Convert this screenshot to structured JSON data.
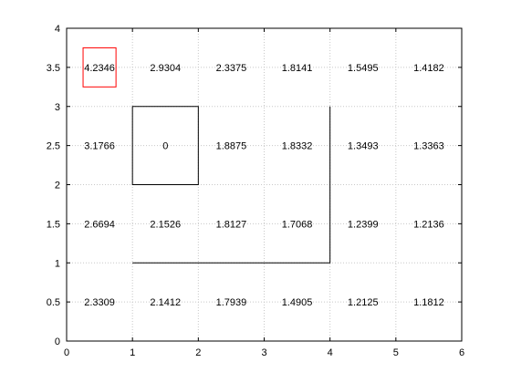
{
  "chart_data": {
    "type": "heatmap",
    "title": "",
    "xlabel": "",
    "ylabel": "",
    "xlim": [
      0,
      6
    ],
    "ylim": [
      0,
      4
    ],
    "xticks": [
      0,
      1,
      2,
      3,
      4,
      5,
      6
    ],
    "yticks": [
      0,
      0.5,
      1,
      1.5,
      2,
      2.5,
      3,
      3.5,
      4
    ],
    "grid": true,
    "cells": [
      {
        "x": 0.5,
        "y": 3.5,
        "value": "4.2346"
      },
      {
        "x": 1.5,
        "y": 3.5,
        "value": "2.9304"
      },
      {
        "x": 2.5,
        "y": 3.5,
        "value": "2.3375"
      },
      {
        "x": 3.5,
        "y": 3.5,
        "value": "1.8141"
      },
      {
        "x": 4.5,
        "y": 3.5,
        "value": "1.5495"
      },
      {
        "x": 5.5,
        "y": 3.5,
        "value": "1.4182"
      },
      {
        "x": 0.5,
        "y": 2.5,
        "value": "3.1766"
      },
      {
        "x": 1.5,
        "y": 2.5,
        "value": "0"
      },
      {
        "x": 2.5,
        "y": 2.5,
        "value": "1.8875"
      },
      {
        "x": 3.5,
        "y": 2.5,
        "value": "1.8332"
      },
      {
        "x": 4.5,
        "y": 2.5,
        "value": "1.3493"
      },
      {
        "x": 5.5,
        "y": 2.5,
        "value": "1.3363"
      },
      {
        "x": 0.5,
        "y": 1.5,
        "value": "2.6694"
      },
      {
        "x": 1.5,
        "y": 1.5,
        "value": "2.1526"
      },
      {
        "x": 2.5,
        "y": 1.5,
        "value": "1.8127"
      },
      {
        "x": 3.5,
        "y": 1.5,
        "value": "1.7068"
      },
      {
        "x": 4.5,
        "y": 1.5,
        "value": "1.2399"
      },
      {
        "x": 5.5,
        "y": 1.5,
        "value": "1.2136"
      },
      {
        "x": 0.5,
        "y": 0.5,
        "value": "2.3309"
      },
      {
        "x": 1.5,
        "y": 0.5,
        "value": "2.1412"
      },
      {
        "x": 2.5,
        "y": 0.5,
        "value": "1.7939"
      },
      {
        "x": 3.5,
        "y": 0.5,
        "value": "1.4905"
      },
      {
        "x": 4.5,
        "y": 0.5,
        "value": "1.2125"
      },
      {
        "x": 5.5,
        "y": 0.5,
        "value": "1.1812"
      }
    ],
    "annotations": [
      {
        "shape": "rect",
        "color": "#ff0000",
        "x": [
          0.25,
          0.75
        ],
        "y": [
          3.25,
          3.75
        ]
      },
      {
        "shape": "rect",
        "color": "#000000",
        "x": [
          1,
          2
        ],
        "y": [
          2,
          3
        ]
      },
      {
        "shape": "polyline",
        "color": "#000000",
        "points": [
          [
            1,
            1
          ],
          [
            4,
            1
          ],
          [
            4,
            3
          ]
        ]
      }
    ]
  }
}
